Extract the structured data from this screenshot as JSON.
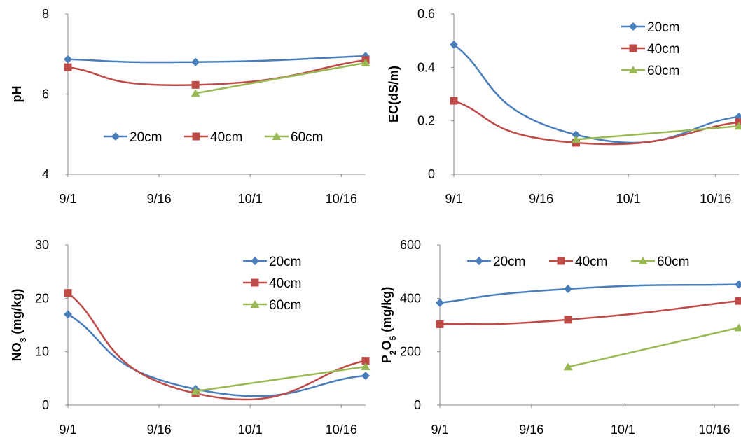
{
  "colors": {
    "20cm": "#4A7EBB",
    "40cm": "#BE4B48",
    "60cm": "#98B954"
  },
  "chart_data": [
    {
      "type": "line",
      "ylabel": "pH",
      "ylim": [
        4,
        8
      ],
      "yticks": [
        4,
        6,
        8
      ],
      "xticks": [
        "9/1",
        "9/16",
        "10/1",
        "10/16"
      ],
      "xlim": [
        0,
        49
      ],
      "legend_placement": "center",
      "series": [
        {
          "name": "20cm",
          "marker": "diamond",
          "smooth": true,
          "points": [
            [
              0,
              6.87
            ],
            [
              21,
              6.8
            ],
            [
              49,
              6.95
            ]
          ]
        },
        {
          "name": "40cm",
          "marker": "square",
          "smooth": true,
          "points": [
            [
              0,
              6.67
            ],
            [
              21,
              6.23
            ],
            [
              49,
              6.85
            ]
          ]
        },
        {
          "name": "60cm",
          "marker": "triangle",
          "smooth": true,
          "points": [
            [
              21,
              6.02
            ],
            [
              49,
              6.78
            ]
          ]
        }
      ]
    },
    {
      "type": "line",
      "ylabel": "EC(dS/m)",
      "ylim": [
        0,
        0.6
      ],
      "yticks": [
        "0",
        "0.2",
        "0.4",
        "0.6"
      ],
      "xticks": [
        "9/1",
        "9/16",
        "10/1",
        "10/16"
      ],
      "xlim": [
        0,
        49
      ],
      "legend_placement": "top-right",
      "series": [
        {
          "name": "20cm",
          "marker": "diamond",
          "smooth": true,
          "points": [
            [
              0,
              0.485
            ],
            [
              21,
              0.148
            ],
            [
              49,
              0.215
            ]
          ]
        },
        {
          "name": "40cm",
          "marker": "square",
          "smooth": true,
          "points": [
            [
              0,
              0.275
            ],
            [
              21,
              0.118
            ],
            [
              49,
              0.195
            ]
          ]
        },
        {
          "name": "60cm",
          "marker": "triangle",
          "smooth": true,
          "points": [
            [
              21,
              0.13
            ],
            [
              49,
              0.18
            ]
          ]
        }
      ]
    },
    {
      "type": "line",
      "ylabel": "NO3 (mg/kg)",
      "ylabel_parts": {
        "main": "NO",
        "sub": "3",
        "rest": " (mg/kg)"
      },
      "ylim": [
        0,
        30
      ],
      "yticks": [
        0,
        10,
        20,
        30
      ],
      "xticks": [
        "9/1",
        "9/16",
        "10/1",
        "10/16"
      ],
      "xlim": [
        0,
        49
      ],
      "legend_placement": "top-right",
      "series": [
        {
          "name": "20cm",
          "marker": "diamond",
          "smooth": true,
          "points": [
            [
              0,
              17
            ],
            [
              21,
              3
            ],
            [
              49,
              5.5
            ]
          ]
        },
        {
          "name": "40cm",
          "marker": "square",
          "smooth": true,
          "points": [
            [
              0,
              21
            ],
            [
              21,
              2.2
            ],
            [
              49,
              8.3
            ]
          ]
        },
        {
          "name": "60cm",
          "marker": "triangle",
          "smooth": true,
          "points": [
            [
              21,
              2.6
            ],
            [
              49,
              7.2
            ]
          ]
        }
      ]
    },
    {
      "type": "line",
      "ylabel": "P2O5 (mg/kg)",
      "ylabel_parts": {
        "a": "P",
        "sub1": "2",
        "b": "O",
        "sub2": "5",
        "rest": " (mg/kg)"
      },
      "ylim": [
        0,
        600
      ],
      "yticks": [
        0,
        200,
        400,
        600
      ],
      "xticks": [
        "9/1",
        "9/16",
        "10/1",
        "10/16"
      ],
      "xlim": [
        0,
        49
      ],
      "legend_placement": "top",
      "series": [
        {
          "name": "20cm",
          "marker": "diamond",
          "smooth": true,
          "points": [
            [
              0,
              383
            ],
            [
              21,
              435
            ],
            [
              49,
              452
            ]
          ]
        },
        {
          "name": "40cm",
          "marker": "square",
          "smooth": true,
          "points": [
            [
              0,
              303
            ],
            [
              21,
              320
            ],
            [
              49,
              390
            ]
          ]
        },
        {
          "name": "60cm",
          "marker": "triangle",
          "smooth": false,
          "points": [
            [
              21,
              143
            ],
            [
              49,
              290
            ]
          ]
        }
      ]
    }
  ]
}
